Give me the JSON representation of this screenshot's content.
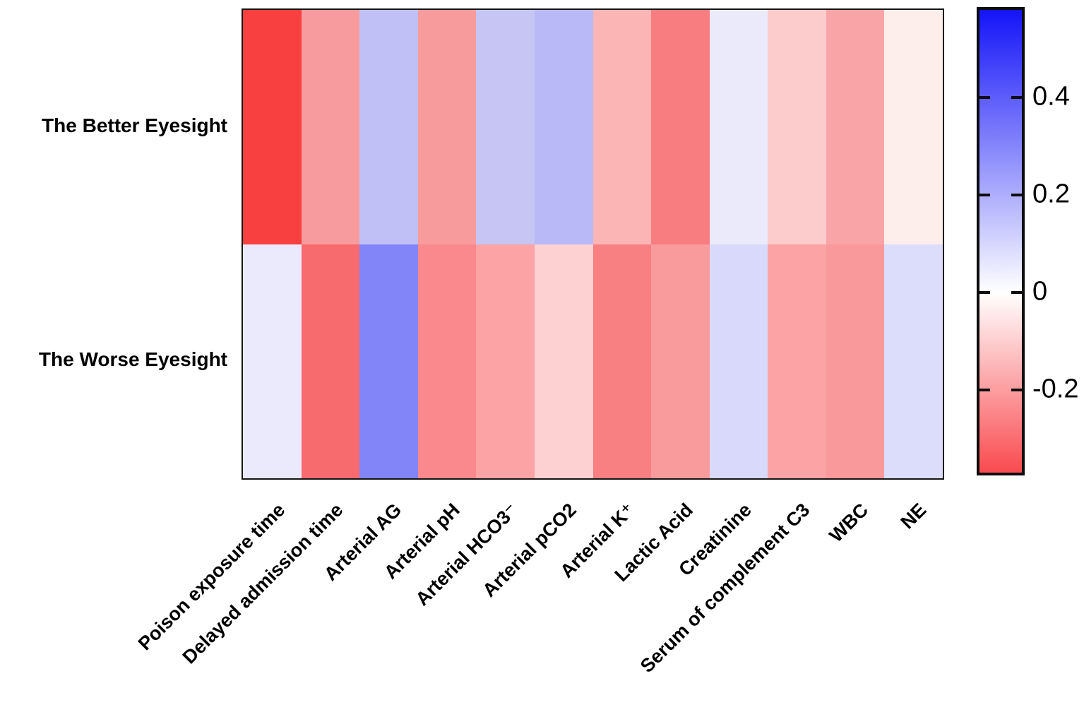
{
  "figure": {
    "background": "#ffffff",
    "axis_color": "#141414"
  },
  "chart_data": {
    "type": "heatmap",
    "title": "",
    "xlabel": "",
    "ylabel": "",
    "grid": false,
    "legend_position": "right-colorbar",
    "rows": [
      "The Better Eyesight",
      "The Worse Eyesight"
    ],
    "columns": [
      "Poison exposure time",
      "Delayed admission time",
      "Arterial AG",
      "Arterial pH",
      "Arterial HCO3⁻",
      "Arterial pCO2",
      "Arterial K⁺",
      "Lactic Acid",
      "Creatinine",
      "Serum of complement C3",
      "WBC",
      "NE"
    ],
    "values": [
      [
        -0.43,
        -0.23,
        0.14,
        -0.23,
        0.13,
        0.16,
        -0.17,
        -0.3,
        0.05,
        -0.12,
        -0.2,
        -0.04
      ],
      [
        0.05,
        -0.34,
        0.28,
        -0.27,
        -0.21,
        -0.11,
        -0.29,
        -0.23,
        0.09,
        -0.21,
        -0.23,
        0.08
      ]
    ],
    "cell_colors": [
      [
        "#f7403f",
        "#f89b9e",
        "#c0bff6",
        "#f89b9d",
        "#c6c5f4",
        "#b9b9f8",
        "#fbb5b5",
        "#f87d80",
        "#eaeafb",
        "#fccccc",
        "#f9a5a7",
        "#fdedeb"
      ],
      [
        "#eaeafc",
        "#f76a6e",
        "#8285f8",
        "#f9898c",
        "#fba3a5",
        "#fdd0d2",
        "#f87f82",
        "#f99a9d",
        "#d9d9fb",
        "#fba3a5",
        "#f9999c",
        "#dcdcfb"
      ]
    ],
    "colorbar": {
      "max": 0.58,
      "min": -0.37,
      "top_color": "#1414f8",
      "zero_color": "#ffffff",
      "bottom_color": "#f94b4f",
      "ticks": [
        {
          "label": "0.4",
          "value": 0.4
        },
        {
          "label": "0.2",
          "value": 0.2
        },
        {
          "label": "0",
          "value": 0.0
        },
        {
          "label": "-0.2",
          "value": -0.2
        }
      ]
    }
  }
}
